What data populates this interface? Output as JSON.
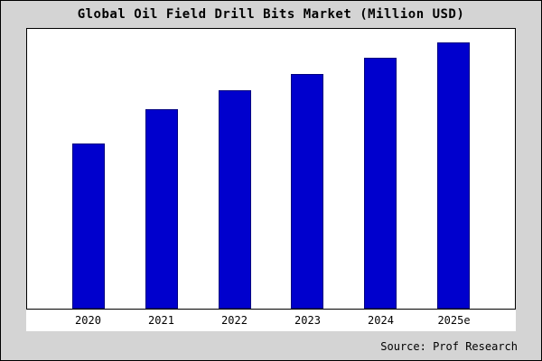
{
  "title": "Global Oil Field Drill Bits Market (Million USD)",
  "source": "Source: Prof Research",
  "colors": {
    "background": "#d4d4d4",
    "plot_background": "#ffffff",
    "bar_fill": "#0000cd",
    "bar_border": "#000080",
    "frame_border": "#000000"
  },
  "chart_data": {
    "type": "bar",
    "title": "Global Oil Field Drill Bits Market (Million USD)",
    "categories": [
      "2020",
      "2021",
      "2022",
      "2023",
      "2024",
      "2025e"
    ],
    "values": [
      62,
      75,
      82,
      88,
      94,
      100
    ],
    "xlabel": "",
    "ylabel": "",
    "ylim": [
      0,
      105
    ],
    "grid": false,
    "legend": false,
    "y_axis_ticks_visible": false
  }
}
